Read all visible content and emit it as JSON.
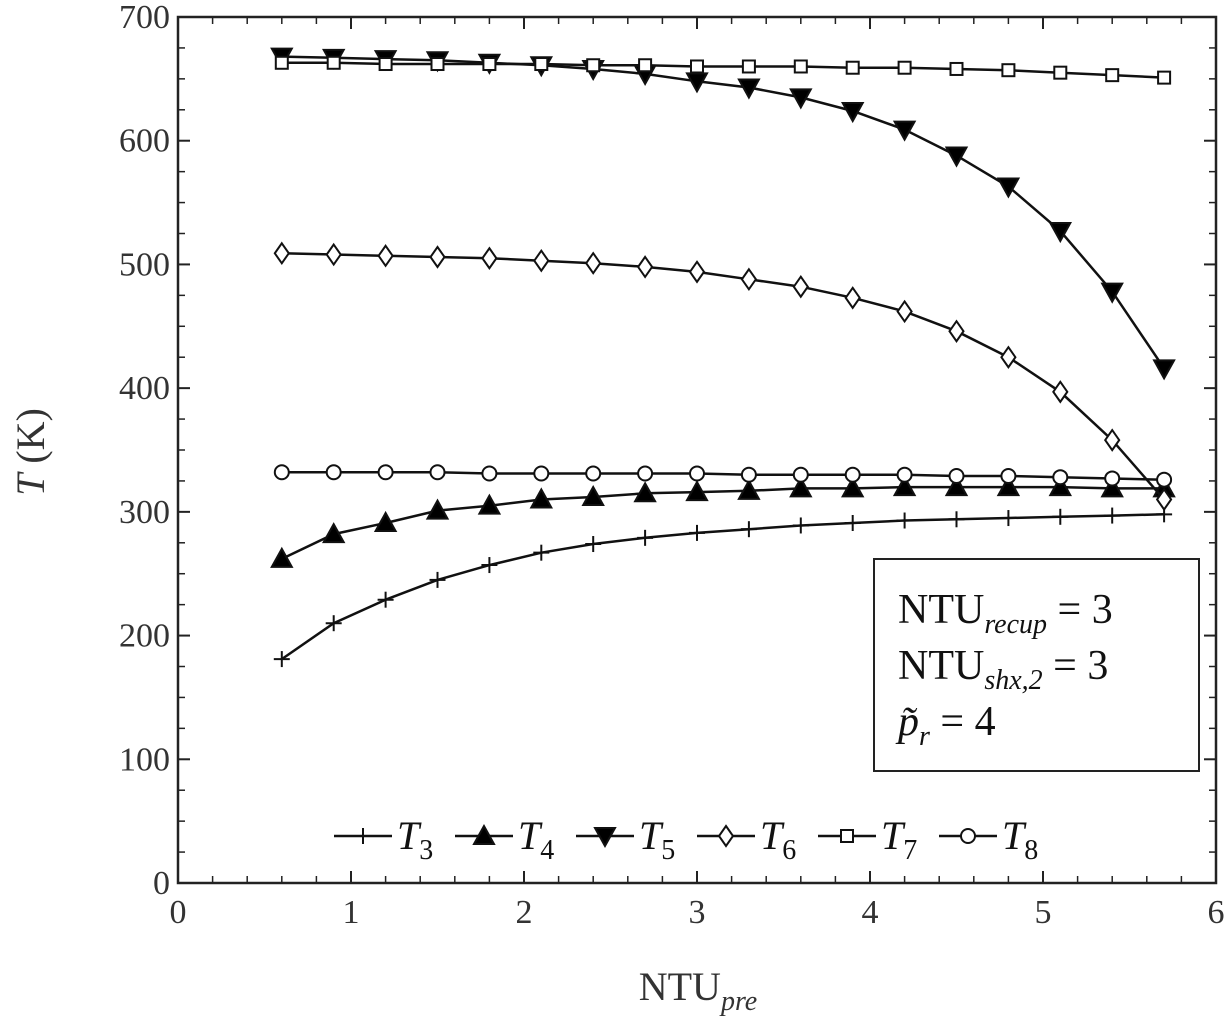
{
  "chart_data": {
    "type": "line",
    "xlabel": {
      "main": "NTU",
      "sub": "pre"
    },
    "ylabel": {
      "var": "T",
      "unit": " (K)"
    },
    "xlim": [
      0,
      6
    ],
    "ylim": [
      0,
      700
    ],
    "xticks": [
      0,
      1,
      2,
      3,
      4,
      5,
      6
    ],
    "yticks": [
      0,
      100,
      200,
      300,
      400,
      500,
      600,
      700
    ],
    "x": [
      0.6,
      0.9,
      1.2,
      1.5,
      1.8,
      2.1,
      2.4,
      2.7,
      3.0,
      3.3,
      3.6,
      3.9,
      4.2,
      4.5,
      4.8,
      5.1,
      5.4,
      5.7
    ],
    "series": [
      {
        "name": "T",
        "sub": "3",
        "marker": "plus",
        "values": [
          181,
          210,
          229,
          245,
          257,
          267,
          274,
          279,
          283,
          286,
          289,
          291,
          293,
          294,
          295,
          296,
          297,
          298
        ]
      },
      {
        "name": "T",
        "sub": "4",
        "marker": "triangle-up",
        "values": [
          262,
          282,
          291,
          301,
          305,
          310,
          312,
          315,
          316,
          317,
          319,
          319,
          320,
          320,
          320,
          320,
          319,
          319
        ]
      },
      {
        "name": "T",
        "sub": "5",
        "marker": "triangle-down",
        "values": [
          668,
          667,
          666,
          665,
          663,
          661,
          658,
          654,
          648,
          643,
          635,
          624,
          609,
          588,
          563,
          527,
          478,
          416
        ]
      },
      {
        "name": "T",
        "sub": "6",
        "marker": "diamond",
        "values": [
          509,
          508,
          507,
          506,
          505,
          503,
          501,
          498,
          494,
          488,
          482,
          473,
          462,
          446,
          425,
          397,
          358,
          310
        ]
      },
      {
        "name": "T",
        "sub": "7",
        "marker": "square",
        "values": [
          663,
          663,
          662,
          662,
          662,
          662,
          661,
          661,
          660,
          660,
          660,
          659,
          659,
          658,
          657,
          655,
          653,
          651
        ]
      },
      {
        "name": "T",
        "sub": "8",
        "marker": "circle",
        "values": [
          332,
          332,
          332,
          332,
          331,
          331,
          331,
          331,
          331,
          330,
          330,
          330,
          330,
          329,
          329,
          328,
          327,
          326
        ]
      }
    ],
    "annotation": [
      {
        "main": "NTU",
        "sub": "recup",
        "rest": " = 3"
      },
      {
        "main": "NTU",
        "sub": "shx,2",
        "rest": " = 3"
      },
      {
        "main": "p̃",
        "sub": "r",
        "rest": " = 4"
      }
    ],
    "legend_position": "bottom-center",
    "grid": false
  }
}
